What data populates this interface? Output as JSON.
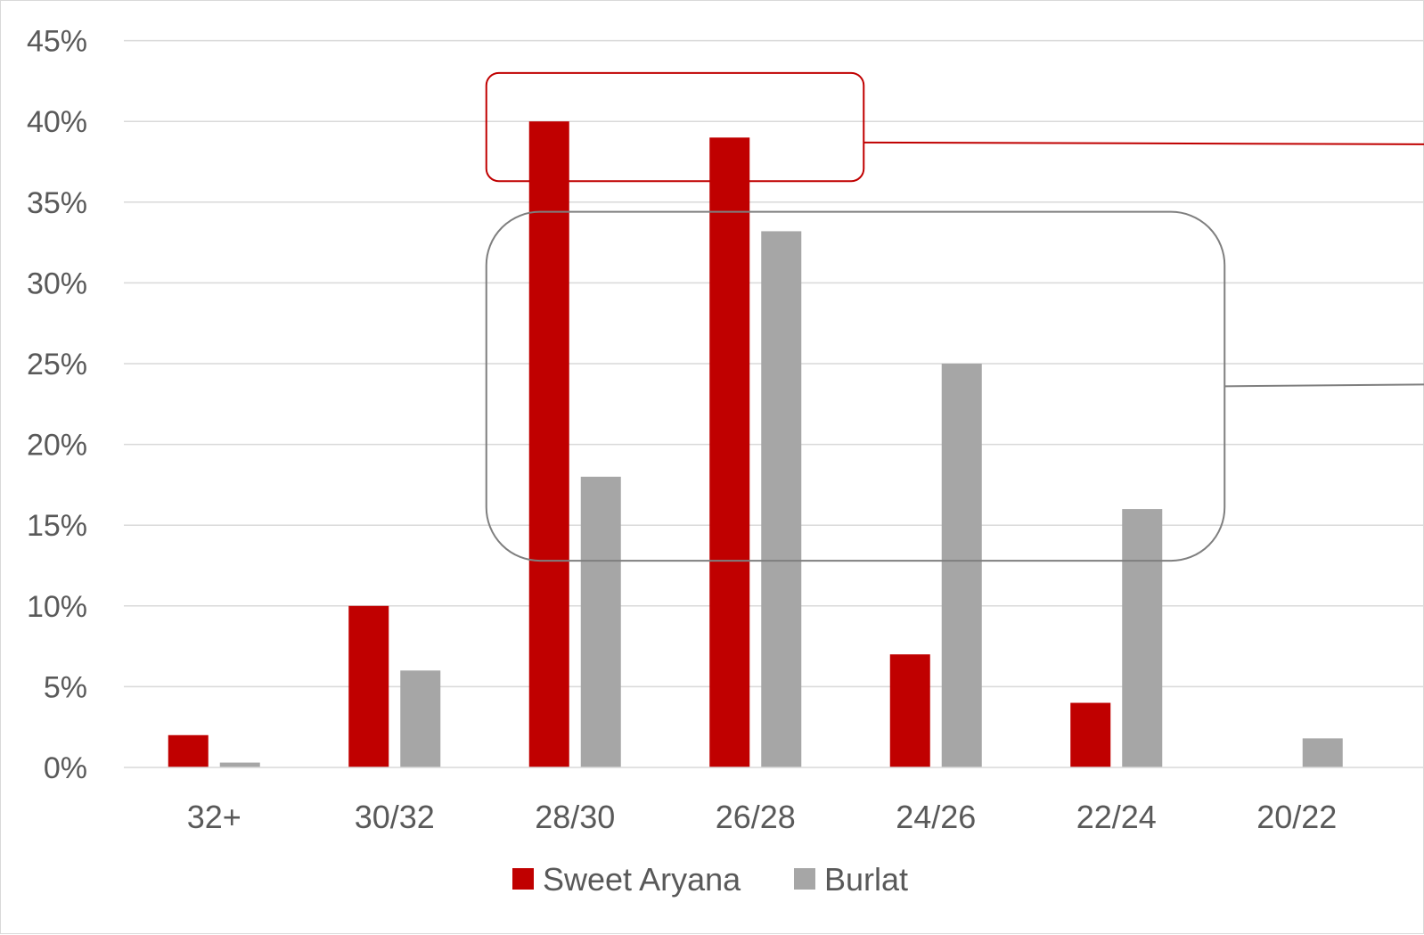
{
  "chart_data": {
    "type": "bar",
    "categories": [
      "32+",
      "30/32",
      "28/30",
      "26/28",
      "24/26",
      "22/24",
      "20/22"
    ],
    "series": [
      {
        "name": "Sweet Aryana",
        "color": "#c00000",
        "values": [
          2,
          10,
          40,
          39,
          7,
          4,
          0
        ]
      },
      {
        "name": "Burlat",
        "color": "#a6a6a6",
        "values": [
          0.3,
          6,
          18,
          33.2,
          25,
          16,
          1.8
        ]
      }
    ],
    "title": "",
    "xlabel": "",
    "ylabel": "",
    "ylim": [
      0,
      45
    ],
    "yticks": [
      "0%",
      "5%",
      "10%",
      "15%",
      "20%",
      "25%",
      "30%",
      "35%",
      "40%",
      "45%"
    ],
    "grid": true,
    "legend": "bottom",
    "annotations": [
      {
        "kind": "rounded-box",
        "color": "#c00000",
        "encloses": [
          "28/30",
          "26/28"
        ],
        "y_range": [
          36.3,
          43
        ],
        "leader": "right"
      },
      {
        "kind": "rounded-box",
        "color": "#7f7f7f",
        "encloses": [
          "28/30",
          "26/28",
          "24/26",
          "22/24"
        ],
        "y_range": [
          12.8,
          34.4
        ],
        "leader": "right"
      }
    ]
  }
}
